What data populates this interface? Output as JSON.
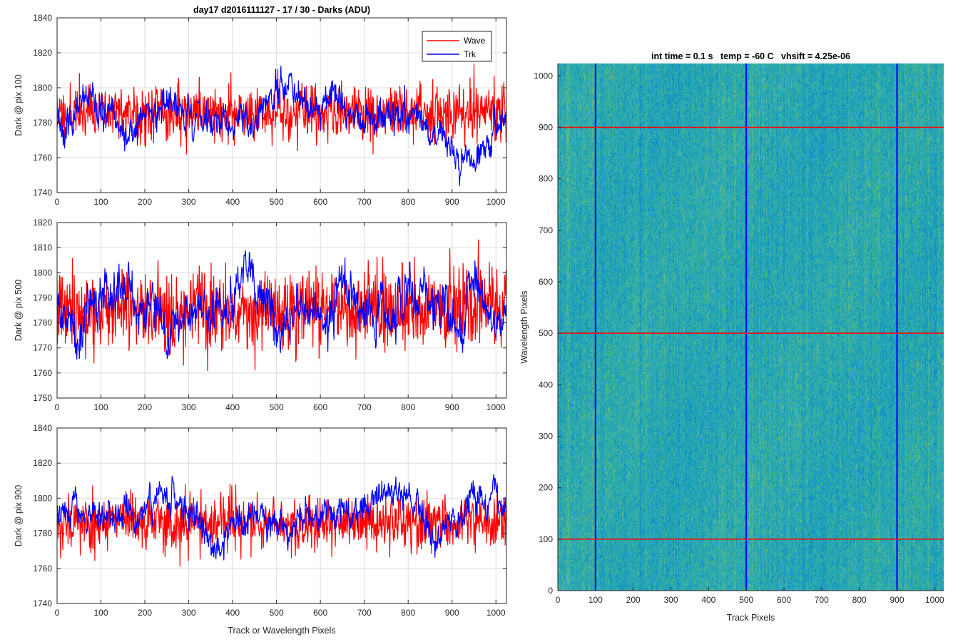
{
  "figure_title": "day17 d2016111127 - 17 / 30 - Darks (ADU)",
  "chart_data": [
    {
      "type": "line",
      "title": "day17 d2016111127 - 17 / 30 - Darks (ADU)",
      "xlabel": "",
      "ylabel": "Dark @ pix 100",
      "xlim": [
        0,
        1024
      ],
      "ylim": [
        1740,
        1840
      ],
      "xticks": [
        0,
        100,
        200,
        300,
        400,
        500,
        600,
        700,
        800,
        900,
        1000
      ],
      "yticks": [
        1740,
        1760,
        1780,
        1800,
        1820,
        1840
      ],
      "grid": true,
      "legend_position": "top-right",
      "series": [
        {
          "name": "Wave",
          "color": "#ff0000",
          "mean": 1786,
          "noise": 8,
          "drift": 2,
          "seed": 11,
          "anchors": [
            [
              0,
              1786
            ],
            [
              150,
              1786
            ],
            [
              300,
              1786
            ],
            [
              500,
              1786
            ],
            [
              700,
              1786
            ],
            [
              900,
              1786
            ],
            [
              1023,
              1786
            ]
          ]
        },
        {
          "name": "Trk",
          "color": "#0000ff",
          "mean": 1783,
          "noise": 3,
          "drift": 8,
          "seed": 23,
          "anchors": [
            [
              0,
              1783
            ],
            [
              100,
              1786
            ],
            [
              150,
              1774
            ],
            [
              250,
              1790
            ],
            [
              350,
              1780
            ],
            [
              420,
              1774
            ],
            [
              500,
              1796
            ],
            [
              600,
              1786
            ],
            [
              650,
              1796
            ],
            [
              720,
              1778
            ],
            [
              800,
              1784
            ],
            [
              880,
              1768
            ],
            [
              950,
              1762
            ],
            [
              1023,
              1788
            ]
          ]
        }
      ]
    },
    {
      "type": "line",
      "title": "",
      "xlabel": "",
      "ylabel": "Dark @ pix 500",
      "xlim": [
        0,
        1024
      ],
      "ylim": [
        1750,
        1820
      ],
      "xticks": [
        0,
        100,
        200,
        300,
        400,
        500,
        600,
        700,
        800,
        900,
        1000
      ],
      "yticks": [
        1750,
        1760,
        1770,
        1780,
        1790,
        1800,
        1810,
        1820
      ],
      "grid": true,
      "series": [
        {
          "name": "Wave",
          "color": "#ff0000",
          "mean": 1785,
          "noise": 8,
          "drift": 2,
          "seed": 37,
          "anchors": [
            [
              0,
              1785
            ],
            [
              300,
              1786
            ],
            [
              600,
              1785
            ],
            [
              1023,
              1785
            ]
          ]
        },
        {
          "name": "Trk",
          "color": "#0000ff",
          "mean": 1784,
          "noise": 3,
          "drift": 8,
          "seed": 41,
          "anchors": [
            [
              0,
              1782
            ],
            [
              150,
              1792
            ],
            [
              250,
              1780
            ],
            [
              360,
              1784
            ],
            [
              440,
              1796
            ],
            [
              520,
              1778
            ],
            [
              600,
              1786
            ],
            [
              670,
              1796
            ],
            [
              720,
              1780
            ],
            [
              800,
              1792
            ],
            [
              900,
              1782
            ],
            [
              1023,
              1786
            ]
          ]
        }
      ]
    },
    {
      "type": "line",
      "title": "",
      "xlabel": "Track or Wavelength Pixels",
      "ylabel": "Dark @ pix 900",
      "xlim": [
        0,
        1024
      ],
      "ylim": [
        1740,
        1840
      ],
      "xticks": [
        0,
        100,
        200,
        300,
        400,
        500,
        600,
        700,
        800,
        900,
        1000
      ],
      "yticks": [
        1740,
        1760,
        1780,
        1800,
        1820,
        1840
      ],
      "grid": true,
      "series": [
        {
          "name": "Wave",
          "color": "#ff0000",
          "mean": 1786,
          "noise": 8,
          "drift": 2,
          "seed": 53,
          "anchors": [
            [
              0,
              1786
            ],
            [
              400,
              1786
            ],
            [
              800,
              1786
            ],
            [
              1023,
              1786
            ]
          ]
        },
        {
          "name": "Trk",
          "color": "#0000ff",
          "mean": 1788,
          "noise": 3,
          "drift": 7,
          "seed": 67,
          "anchors": [
            [
              0,
              1794
            ],
            [
              150,
              1784
            ],
            [
              260,
              1802
            ],
            [
              360,
              1774
            ],
            [
              440,
              1790
            ],
            [
              520,
              1784
            ],
            [
              650,
              1792
            ],
            [
              780,
              1806
            ],
            [
              860,
              1778
            ],
            [
              920,
              1794
            ],
            [
              1000,
              1808
            ],
            [
              1023,
              1800
            ]
          ]
        }
      ]
    },
    {
      "type": "heatmap",
      "title": "int time = 0.1 s   temp = -60 C   vhsift = 4.25e-06",
      "xlabel": "Track Pixels",
      "ylabel": "Wavelength Pixels",
      "xlim": [
        0,
        1024
      ],
      "ylim": [
        0,
        1024
      ],
      "xticks": [
        0,
        100,
        200,
        300,
        400,
        500,
        600,
        700,
        800,
        900,
        1000
      ],
      "yticks": [
        0,
        100,
        200,
        300,
        400,
        500,
        600,
        700,
        800,
        900,
        1000
      ],
      "colormap": [
        "#0b84c9",
        "#20a7b8",
        "#3fb29f",
        "#8cc463"
      ],
      "vertical_markers": {
        "values": [
          100,
          500,
          900
        ],
        "color": "#0000ff"
      },
      "horizontal_markers": {
        "values": [
          100,
          500,
          900
        ],
        "color": "#ff0000"
      }
    }
  ]
}
